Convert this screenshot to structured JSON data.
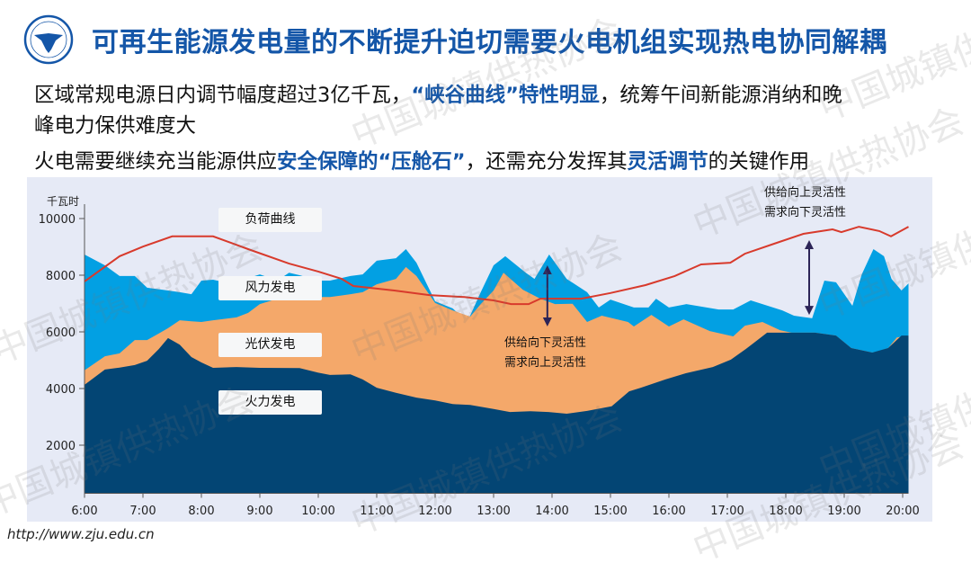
{
  "header": {
    "logo_text": "浙江大学 ZHEJIANG UNIVERSITY 1897",
    "title": "可再生能源发电量的不断提升迫切需要火电机组实现热电协同解耦"
  },
  "body": {
    "line1": [
      {
        "t": "区域常规电源日内调节幅度超过3亿千瓦，",
        "hl": false
      },
      {
        "t": "“峡谷曲线”特性明显",
        "hl": true
      },
      {
        "t": "，统筹午间新能源消纳和晚",
        "hl": false
      }
    ],
    "line2": [
      {
        "t": "峰电力保供难度大",
        "hl": false
      }
    ],
    "line3": [
      {
        "t": "火电需要继续充当能源供应",
        "hl": false
      },
      {
        "t": "安全保障的“压舱石”",
        "hl": true
      },
      {
        "t": "，还需充分发挥其",
        "hl": false
      },
      {
        "t": "灵活调节",
        "hl": true
      },
      {
        "t": "的关键作用",
        "hl": false
      }
    ]
  },
  "footer": {
    "url": "http://www.zju.edu.cn"
  },
  "watermark": "中国城镇供热协会",
  "colors": {
    "title": "#1456a8",
    "thermal": "#034574",
    "solar": "#f4a86a",
    "wind": "#02a0e3",
    "load": "#d83a2c",
    "arrow": "#2c2457",
    "panel": "#e6eaf6"
  },
  "chart_data": {
    "type": "area",
    "stacked": true,
    "ylabel": "千瓦时",
    "ylim": [
      300,
      10000
    ],
    "yticks": [
      2000,
      4000,
      6000,
      8000,
      10000
    ],
    "ytick_labels": [
      "2000",
      "4000",
      "6000",
      "8000",
      "10000"
    ],
    "xlim": [
      6,
      20.1
    ],
    "xticks": [
      6,
      7,
      8,
      9,
      10,
      11,
      12,
      13,
      14,
      15,
      16,
      17,
      18,
      19,
      20
    ],
    "xtick_labels": [
      "6:00",
      "7:00",
      "8:00",
      "9:00",
      "10:00",
      "11:00",
      "12:00",
      "13:00",
      "14:00",
      "15:00",
      "16:00",
      "17:00",
      "18:00",
      "19:00",
      "20:00"
    ],
    "series_note": "points are [hour, cumulative stacked top value]",
    "series": [
      {
        "name": "风力发电",
        "key": "wind",
        "points": [
          [
            6,
            8730
          ],
          [
            6.35,
            8350
          ],
          [
            6.6,
            7970
          ],
          [
            6.86,
            7970
          ],
          [
            7.07,
            7560
          ],
          [
            7.43,
            7460
          ],
          [
            7.63,
            7400
          ],
          [
            7.83,
            7330
          ],
          [
            8.0,
            7810
          ],
          [
            8.2,
            7840
          ],
          [
            8.5,
            7700
          ],
          [
            9.0,
            8030
          ],
          [
            9.3,
            7810
          ],
          [
            9.5,
            8090
          ],
          [
            9.68,
            8000
          ],
          [
            10.0,
            7810
          ],
          [
            10.2,
            7810
          ],
          [
            10.55,
            7970
          ],
          [
            10.76,
            8030
          ],
          [
            11.0,
            8510
          ],
          [
            11.33,
            8600
          ],
          [
            11.5,
            8920
          ],
          [
            11.68,
            8440
          ],
          [
            12.0,
            7080
          ],
          [
            12.3,
            6830
          ],
          [
            12.55,
            6350
          ],
          [
            12.78,
            7400
          ],
          [
            13.0,
            8350
          ],
          [
            13.2,
            8670
          ],
          [
            13.55,
            8090
          ],
          [
            13.7,
            7870
          ],
          [
            13.95,
            8730
          ],
          [
            14.25,
            7870
          ],
          [
            14.6,
            7400
          ],
          [
            14.8,
            6860
          ],
          [
            15.0,
            7140
          ],
          [
            15.4,
            6860
          ],
          [
            15.65,
            6860
          ],
          [
            15.78,
            7170
          ],
          [
            16.0,
            6860
          ],
          [
            16.3,
            6980
          ],
          [
            16.85,
            6790
          ],
          [
            17.1,
            6790
          ],
          [
            17.4,
            7110
          ],
          [
            17.94,
            6760
          ],
          [
            18.14,
            6570
          ],
          [
            18.45,
            6480
          ],
          [
            18.66,
            7810
          ],
          [
            18.86,
            7750
          ],
          [
            19.14,
            6920
          ],
          [
            19.3,
            8030
          ],
          [
            19.5,
            8920
          ],
          [
            19.68,
            8670
          ],
          [
            19.81,
            7870
          ],
          [
            19.98,
            7460
          ],
          [
            20.1,
            7710
          ]
        ]
      },
      {
        "name": "光伏发电",
        "key": "solar",
        "points": [
          [
            6,
            4640
          ],
          [
            6.35,
            5140
          ],
          [
            6.6,
            5240
          ],
          [
            6.86,
            5710
          ],
          [
            7.07,
            5710
          ],
          [
            7.27,
            5940
          ],
          [
            7.43,
            6130
          ],
          [
            7.63,
            6410
          ],
          [
            7.83,
            6370
          ],
          [
            8.0,
            6350
          ],
          [
            8.2,
            6410
          ],
          [
            8.6,
            6510
          ],
          [
            8.8,
            6670
          ],
          [
            9.0,
            6980
          ],
          [
            9.3,
            7170
          ],
          [
            9.68,
            7230
          ],
          [
            10.2,
            7230
          ],
          [
            10.55,
            7330
          ],
          [
            10.76,
            7400
          ],
          [
            11.0,
            7680
          ],
          [
            11.33,
            7870
          ],
          [
            11.5,
            8290
          ],
          [
            11.68,
            7970
          ],
          [
            12.0,
            7020
          ],
          [
            12.3,
            6760
          ],
          [
            12.6,
            6540
          ],
          [
            12.78,
            6980
          ],
          [
            13.0,
            7460
          ],
          [
            13.17,
            8090
          ],
          [
            13.5,
            7490
          ],
          [
            13.8,
            7170
          ],
          [
            14.05,
            6980
          ],
          [
            14.35,
            6990
          ],
          [
            14.6,
            6350
          ],
          [
            14.85,
            6570
          ],
          [
            15.3,
            6350
          ],
          [
            15.4,
            6190
          ],
          [
            15.7,
            6600
          ],
          [
            16.0,
            6190
          ],
          [
            16.25,
            6440
          ],
          [
            16.7,
            6030
          ],
          [
            17.1,
            5840
          ],
          [
            17.3,
            6220
          ],
          [
            17.6,
            6350
          ],
          [
            17.9,
            6060
          ],
          [
            18.1,
            5970
          ],
          [
            18.5,
            5970
          ],
          [
            18.86,
            5870
          ],
          [
            19.12,
            5430
          ],
          [
            19.3,
            5350
          ],
          [
            19.48,
            5270
          ],
          [
            19.6,
            5330
          ],
          [
            19.75,
            5430
          ],
          [
            19.9,
            5800
          ],
          [
            20.1,
            5870
          ]
        ]
      },
      {
        "name": "火力发电",
        "key": "thermal",
        "points": [
          [
            6,
            4130
          ],
          [
            6.35,
            4670
          ],
          [
            6.6,
            4740
          ],
          [
            6.86,
            4830
          ],
          [
            7.07,
            4980
          ],
          [
            7.27,
            5390
          ],
          [
            7.43,
            5780
          ],
          [
            7.63,
            5550
          ],
          [
            7.83,
            5110
          ],
          [
            8.0,
            4920
          ],
          [
            8.2,
            4730
          ],
          [
            8.6,
            4760
          ],
          [
            9.0,
            4730
          ],
          [
            9.68,
            4720
          ],
          [
            10.0,
            4560
          ],
          [
            10.2,
            4480
          ],
          [
            10.55,
            4500
          ],
          [
            10.76,
            4320
          ],
          [
            11.0,
            4030
          ],
          [
            11.33,
            3850
          ],
          [
            11.68,
            3680
          ],
          [
            12.0,
            3580
          ],
          [
            12.3,
            3450
          ],
          [
            12.6,
            3420
          ],
          [
            13.0,
            3280
          ],
          [
            13.28,
            3170
          ],
          [
            13.63,
            3200
          ],
          [
            13.94,
            3170
          ],
          [
            14.25,
            3110
          ],
          [
            14.6,
            3210
          ],
          [
            15.02,
            3370
          ],
          [
            15.32,
            3900
          ],
          [
            15.52,
            4030
          ],
          [
            15.94,
            4320
          ],
          [
            16.29,
            4540
          ],
          [
            16.75,
            4760
          ],
          [
            17.06,
            5020
          ],
          [
            17.32,
            5400
          ],
          [
            17.68,
            5970
          ],
          [
            18.5,
            5970
          ],
          [
            18.86,
            5870
          ],
          [
            19.12,
            5430
          ],
          [
            19.48,
            5270
          ],
          [
            19.75,
            5430
          ],
          [
            19.98,
            5870
          ],
          [
            20.1,
            5870
          ]
        ]
      }
    ],
    "load_curve": {
      "name": "负荷曲线",
      "points": [
        [
          6,
          7780
        ],
        [
          6.6,
          8670
        ],
        [
          7.0,
          9010
        ],
        [
          7.5,
          9370
        ],
        [
          8.2,
          9370
        ],
        [
          8.8,
          8920
        ],
        [
          9.5,
          8410
        ],
        [
          10.0,
          8130
        ],
        [
          10.4,
          7870
        ],
        [
          10.6,
          7620
        ],
        [
          11.3,
          7460
        ],
        [
          11.9,
          7300
        ],
        [
          12.5,
          7230
        ],
        [
          13.0,
          7110
        ],
        [
          13.3,
          6980
        ],
        [
          13.6,
          6980
        ],
        [
          13.8,
          7170
        ],
        [
          14.5,
          7170
        ],
        [
          15.0,
          7370
        ],
        [
          15.6,
          7650
        ],
        [
          16.1,
          7970
        ],
        [
          16.55,
          8380
        ],
        [
          17.05,
          8440
        ],
        [
          17.3,
          8760
        ],
        [
          17.8,
          9110
        ],
        [
          18.3,
          9460
        ],
        [
          18.8,
          9620
        ],
        [
          18.95,
          9520
        ],
        [
          19.25,
          9710
        ],
        [
          19.6,
          9560
        ],
        [
          19.8,
          9370
        ],
        [
          20.1,
          9710
        ]
      ]
    },
    "annotations": [
      {
        "hour": 13.92,
        "from": 6190,
        "to": 8350,
        "lines": [
          "供给向下灵活性",
          "需求向上灵活性"
        ]
      },
      {
        "hour": 18.4,
        "from": 6600,
        "to": 9240,
        "lines": [
          "供给向上灵活性",
          "需求向下灵活性"
        ]
      }
    ],
    "legend_labels": [
      "负荷曲线",
      "风力发电",
      "光伏发电",
      "火力发电"
    ]
  }
}
